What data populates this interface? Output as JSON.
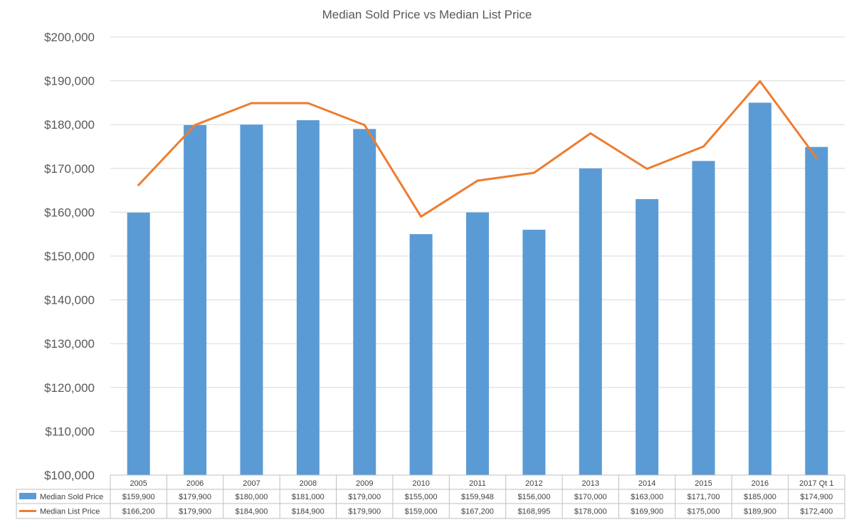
{
  "chart_data": {
    "type": "bar",
    "title": "Median Sold Price vs Median List Price",
    "xlabel": "",
    "ylabel": "",
    "ylim": [
      100000,
      200000
    ],
    "yticks": [
      100000,
      110000,
      120000,
      130000,
      140000,
      150000,
      160000,
      170000,
      180000,
      190000,
      200000
    ],
    "ytick_labels": [
      "$100,000",
      "$110,000",
      "$120,000",
      "$130,000",
      "$140,000",
      "$150,000",
      "$160,000",
      "$170,000",
      "$180,000",
      "$190,000",
      "$200,000"
    ],
    "grid": true,
    "legend_placement": "data-table",
    "categories": [
      "2005",
      "2006",
      "2007",
      "2008",
      "2009",
      "2010",
      "2011",
      "2012",
      "2013",
      "2014",
      "2015",
      "2016",
      "2017 Qt 1"
    ],
    "series": [
      {
        "name": "Median Sold Price",
        "type": "bar",
        "color": "#5b9bd5",
        "values": [
          159900,
          179900,
          180000,
          181000,
          179000,
          155000,
          159948,
          156000,
          170000,
          163000,
          171700,
          185000,
          174900
        ],
        "labels": [
          "$159,900",
          "$179,900",
          "$180,000",
          "$181,000",
          "$179,000",
          "$155,000",
          "$159,948",
          "$156,000",
          "$170,000",
          "$163,000",
          "$171,700",
          "$185,000",
          "$174,900"
        ]
      },
      {
        "name": "Median List Price",
        "type": "line",
        "color": "#ed7d31",
        "values": [
          166200,
          179900,
          184900,
          184900,
          179900,
          159000,
          167200,
          168995,
          178000,
          169900,
          175000,
          189900,
          172400
        ],
        "labels": [
          "$166,200",
          "$179,900",
          "$184,900",
          "$184,900",
          "$179,900",
          "$159,000",
          "$167,200",
          "$168,995",
          "$178,000",
          "$169,900",
          "$175,000",
          "$189,900",
          "$172,400"
        ]
      }
    ]
  }
}
